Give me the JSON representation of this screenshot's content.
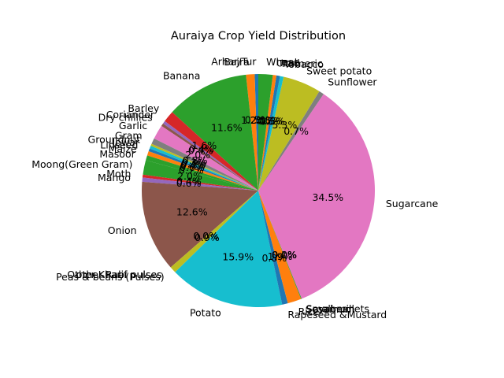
{
  "chart_data": {
    "type": "pie",
    "title": "Auraiya Crop Yield Distribution",
    "start_angle_deg": 90,
    "counterclockwise": true,
    "slices": [
      {
        "label": "Arhar/Tur",
        "value": 0.5,
        "color": "#1f77b4"
      },
      {
        "label": "Bajra",
        "value": 1.2,
        "color": "#ff7f0e"
      },
      {
        "label": "Banana",
        "value": 11.6,
        "color": "#2ca02c"
      },
      {
        "label": "Barley",
        "value": 1.6,
        "color": "#d62728"
      },
      {
        "label": "Coriander",
        "value": 0.4,
        "color": "#9467bd"
      },
      {
        "label": "Dry chillies",
        "value": 0.4,
        "color": "#8c564b"
      },
      {
        "label": "Garlic",
        "value": 2.0,
        "color": "#e377c2"
      },
      {
        "label": "Gram",
        "value": 0.8,
        "color": "#7f7f7f"
      },
      {
        "label": "Groundnut",
        "value": 0.3,
        "color": "#bcbd22"
      },
      {
        "label": "Jowar",
        "value": 0.4,
        "color": "#17becf"
      },
      {
        "label": "Linseed",
        "value": 0.4,
        "color": "#1f77b4"
      },
      {
        "label": "Maize",
        "value": 0.6,
        "color": "#ff7f0e"
      },
      {
        "label": "Masoor",
        "value": 0.7,
        "color": "#2ca02c"
      },
      {
        "label": "Moong(Green Gram)",
        "value": 2.0,
        "color": "#2ca02c"
      },
      {
        "label": "Moth",
        "value": 0.4,
        "color": "#d62728"
      },
      {
        "label": "Mango",
        "value": 0.6,
        "color": "#9467bd"
      },
      {
        "label": "Onion",
        "value": 12.7,
        "color": "#8c564b"
      },
      {
        "label": "Other Kharif pulses",
        "value": 0.0,
        "color": "#e377c2"
      },
      {
        "label": "other Rabi pulses",
        "value": 0.0,
        "color": "#7f7f7f"
      },
      {
        "label": "Peas & beans (Pulses)",
        "value": 0.9,
        "color": "#bcbd22"
      },
      {
        "label": "Potato",
        "value": 16.0,
        "color": "#17becf"
      },
      {
        "label": "Rapeseed &Mustard",
        "value": 0.8,
        "color": "#1f77b4"
      },
      {
        "label": "Rice",
        "value": 1.9,
        "color": "#ff7f0e"
      },
      {
        "label": "Sesamum",
        "value": 0.1,
        "color": "#2ca02c"
      },
      {
        "label": "Small millets",
        "value": 0.0,
        "color": "#d62728"
      },
      {
        "label": "Soyabean",
        "value": 0.0,
        "color": "#9467bd"
      },
      {
        "label": "Sugarcane",
        "value": 34.6,
        "color": "#e377c2"
      },
      {
        "label": "Sunflower",
        "value": 0.7,
        "color": "#7f7f7f"
      },
      {
        "label": "Sweet potato",
        "value": 5.3,
        "color": "#bcbd22"
      },
      {
        "label": "Tobacco",
        "value": 0.5,
        "color": "#17becf"
      },
      {
        "label": "Turmeric",
        "value": 0.5,
        "color": "#1f77b4"
      },
      {
        "label": "Urad",
        "value": 0.5,
        "color": "#ff7f0e"
      },
      {
        "label": "Wheat",
        "value": 2.0,
        "color": "#2ca02c"
      }
    ]
  }
}
